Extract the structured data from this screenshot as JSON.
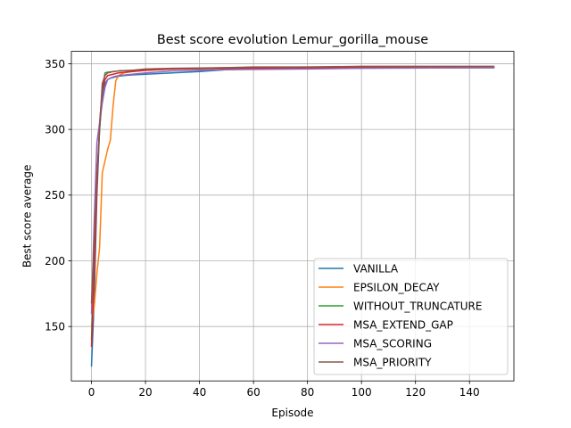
{
  "chart_data": {
    "type": "line",
    "title": "Best score evolution Lemur_gorilla_mouse",
    "xlabel": "Episode",
    "ylabel": "Best score average",
    "xlim": [
      -7.45,
      156.45
    ],
    "ylim": [
      108.6,
      359.4
    ],
    "xticks": [
      0,
      20,
      40,
      60,
      80,
      100,
      120,
      140
    ],
    "yticks": [
      150,
      200,
      250,
      300,
      350
    ],
    "grid": true,
    "legend_position": "lower-right",
    "series": [
      {
        "name": "VANILLA",
        "color": "#1f77b4",
        "x": [
          0,
          1,
          2,
          3,
          4,
          5,
          6,
          7,
          8,
          10,
          12,
          15,
          20,
          25,
          30,
          40,
          50,
          60,
          80,
          100,
          120,
          149
        ],
        "y": [
          120,
          170,
          250,
          300,
          325,
          335,
          338,
          339,
          339.5,
          340.5,
          341,
          341.5,
          342,
          342.5,
          343,
          344,
          345.5,
          346,
          346.5,
          347,
          347,
          347
        ]
      },
      {
        "name": "EPSILON_DECAY",
        "color": "#ff7f0e",
        "x": [
          0,
          1,
          2,
          3,
          4,
          5,
          6,
          7,
          8,
          9,
          10,
          12,
          15,
          20,
          30,
          50,
          80,
          100,
          149
        ],
        "y": [
          150,
          165,
          190,
          210,
          267,
          276,
          285,
          292,
          318,
          337,
          341,
          343,
          344,
          345,
          346,
          347,
          347.5,
          347.5,
          347.5
        ]
      },
      {
        "name": "WITHOUT_TRUNCATURE",
        "color": "#2ca02c",
        "x": [
          0,
          1,
          2,
          3,
          4,
          5,
          6,
          8,
          10,
          15,
          20,
          30,
          50,
          80,
          100,
          149
        ],
        "y": [
          140,
          200,
          260,
          300,
          330,
          343,
          343.5,
          344,
          344.5,
          345,
          345.5,
          346,
          346.5,
          347,
          347,
          347
        ]
      },
      {
        "name": "MSA_EXTEND_GAP",
        "color": "#d62728",
        "x": [
          0,
          1,
          2,
          3,
          4,
          5,
          6,
          8,
          10,
          15,
          20,
          30,
          50,
          80,
          100,
          149
        ],
        "y": [
          135,
          190,
          255,
          305,
          330,
          338,
          341,
          342,
          343,
          344,
          345,
          346,
          346.5,
          347,
          347,
          347
        ]
      },
      {
        "name": "MSA_SCORING",
        "color": "#9467bd",
        "x": [
          0,
          1,
          2,
          3,
          4,
          5,
          6,
          8,
          10,
          15,
          20,
          30,
          50,
          80,
          100,
          149
        ],
        "y": [
          160,
          230,
          290,
          305,
          320,
          332,
          338,
          340,
          341,
          342,
          343,
          344.5,
          345.5,
          346,
          346.5,
          347
        ]
      },
      {
        "name": "MSA_PRIORITY",
        "color": "#8c564b",
        "x": [
          0,
          1,
          2,
          3,
          4,
          5,
          6,
          8,
          10,
          15,
          20,
          30,
          50,
          60,
          80,
          100,
          149
        ],
        "y": [
          168,
          215,
          265,
          300,
          335,
          341,
          343,
          344,
          344.5,
          345,
          346,
          346.5,
          347,
          347.5,
          347.5,
          348,
          348
        ]
      }
    ]
  }
}
